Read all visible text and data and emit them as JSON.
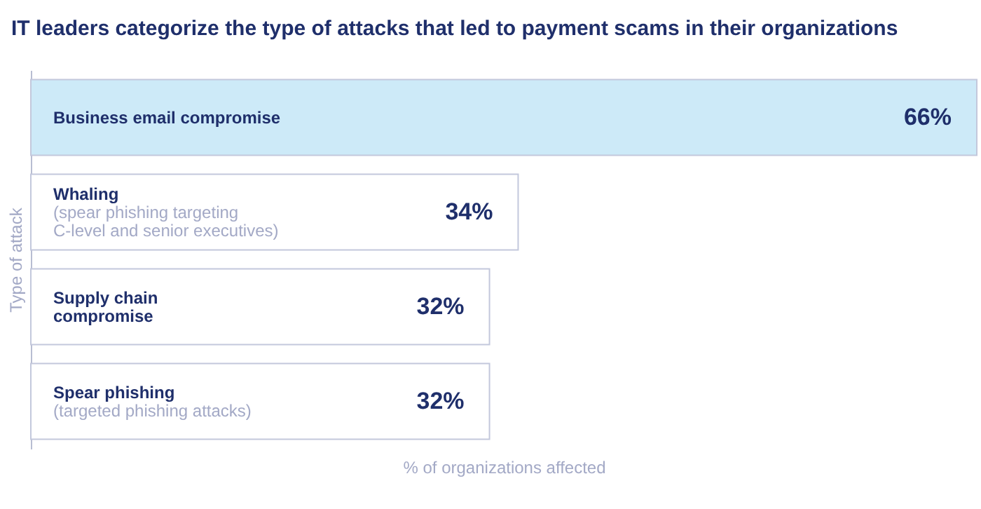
{
  "chart_data": {
    "type": "bar",
    "orientation": "horizontal",
    "title": "IT leaders categorize the type of attacks that led to payment scams in their organizations",
    "xlabel": "% of organizations affected",
    "ylabel": "Type of attack",
    "categories": [
      "Business email compromise",
      "Whaling",
      "Supply chain\ncompromise",
      "Spear phishing"
    ],
    "values": [
      66,
      34,
      32,
      32
    ],
    "value_labels": [
      "66%",
      "34%",
      "32%",
      "32%"
    ],
    "colors": [
      "#cdeaf8",
      "#ffffff",
      "#ffffff",
      "#ffffff"
    ],
    "tick_labels": false,
    "annotations": [
      {
        "text": "(spear phishing targeting\nC-level and senior executives)",
        "y": "Whaling"
      },
      {
        "text": "(targeted phishing attacks)",
        "y": "Spear phishing"
      }
    ]
  }
}
